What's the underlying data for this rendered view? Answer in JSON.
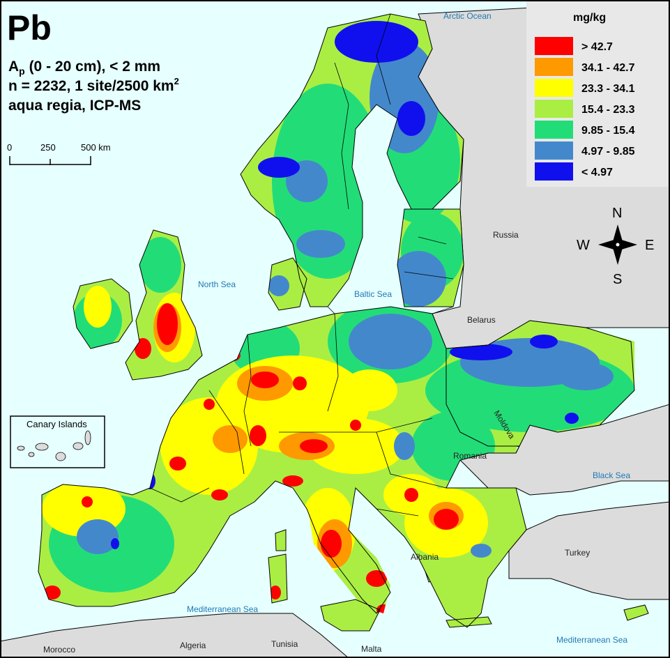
{
  "title": {
    "element": "Pb",
    "line1_prefix": "A",
    "line1_sub": "p",
    "line1_rest": " (0 - 20 cm), < 2 mm",
    "line2_prefix": "n = 2232, 1 site/2500 km",
    "line2_sup": "2",
    "line3": "aqua regia, ICP-MS"
  },
  "scale_bar": {
    "ticks": [
      "0",
      "250",
      "500 km"
    ]
  },
  "inset": {
    "label": "Canary Islands"
  },
  "legend": {
    "title": "mg/kg",
    "classes": [
      {
        "label": "> 42.7",
        "color": "#ff0000"
      },
      {
        "label": "34.1 - 42.7",
        "color": "#ff9900"
      },
      {
        "label": "23.3 - 34.1",
        "color": "#ffff00"
      },
      {
        "label": "15.4 - 23.3",
        "color": "#aaee44"
      },
      {
        "label": "9.85 - 15.4",
        "color": "#22dd77"
      },
      {
        "label": "4.97 - 9.85",
        "color": "#4488cc"
      },
      {
        "label": "< 4.97",
        "color": "#1010ee"
      }
    ]
  },
  "compass": {
    "n": "N",
    "s": "S",
    "e": "E",
    "w": "W"
  },
  "seas": {
    "arctic": "Arctic Ocean",
    "north": "North Sea",
    "baltic": "Baltic Sea",
    "black": "Black Sea",
    "med_west": "Mediterranean Sea",
    "med_east": "Mediterranean Sea"
  },
  "countries": {
    "russia": "Russia",
    "belarus": "Belarus",
    "moldova": "Moldova",
    "romania": "Romania",
    "turkey": "Turkey",
    "albania": "Albania",
    "algeria": "Algeria",
    "tunisia": "Tunisia",
    "malta": "Malta",
    "morocco": "Morocco"
  },
  "colors": {
    "sea": "#e6ffff",
    "non_sampled_land": "#dcdcdc"
  }
}
